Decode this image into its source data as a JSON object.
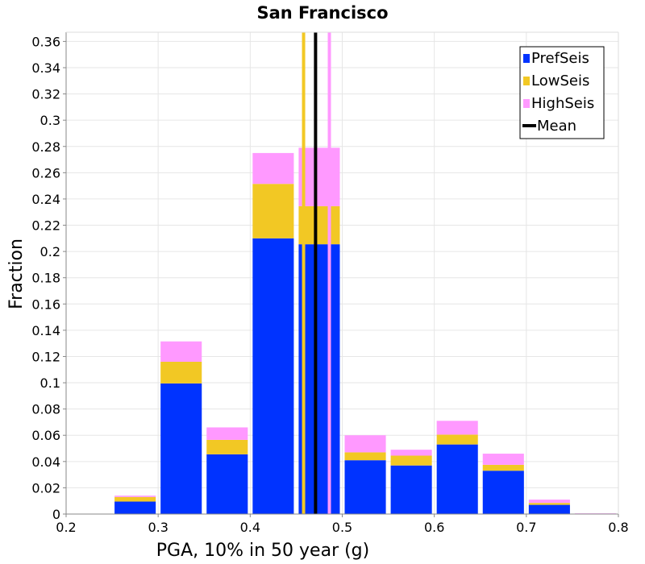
{
  "chart_data": {
    "type": "bar",
    "stacked": true,
    "title": "San Francisco",
    "xlabel": "PGA, 10% in 50 year (g)",
    "ylabel": "Fraction",
    "xlim": [
      0.2,
      0.8
    ],
    "ylim": [
      0,
      0.367
    ],
    "xticks": [
      "0.2",
      "0.3",
      "0.4",
      "0.5",
      "0.6",
      "0.7",
      "0.8"
    ],
    "yticks": [
      "0",
      "0.02",
      "0.04",
      "0.06",
      "0.08",
      "0.1",
      "0.12",
      "0.14",
      "0.16",
      "0.18",
      "0.2",
      "0.22",
      "0.24",
      "0.26",
      "0.28",
      "0.3",
      "0.32",
      "0.34",
      "0.36"
    ],
    "grid": true,
    "legend_position": "top-right",
    "bin_width": 0.05,
    "bins": [
      {
        "center": 0.275,
        "PrefSeis": 0.0095,
        "LowSeis": 0.0035,
        "HighSeis": 0.001
      },
      {
        "center": 0.325,
        "PrefSeis": 0.0995,
        "LowSeis": 0.0165,
        "HighSeis": 0.0155
      },
      {
        "center": 0.375,
        "PrefSeis": 0.0455,
        "LowSeis": 0.011,
        "HighSeis": 0.0095
      },
      {
        "center": 0.425,
        "PrefSeis": 0.21,
        "LowSeis": 0.0415,
        "HighSeis": 0.0235
      },
      {
        "center": 0.475,
        "PrefSeis": 0.2055,
        "LowSeis": 0.029,
        "HighSeis": 0.0445
      },
      {
        "center": 0.525,
        "PrefSeis": 0.041,
        "LowSeis": 0.006,
        "HighSeis": 0.013
      },
      {
        "center": 0.575,
        "PrefSeis": 0.037,
        "LowSeis": 0.0075,
        "HighSeis": 0.0045
      },
      {
        "center": 0.625,
        "PrefSeis": 0.053,
        "LowSeis": 0.0075,
        "HighSeis": 0.0105
      },
      {
        "center": 0.675,
        "PrefSeis": 0.033,
        "LowSeis": 0.0045,
        "HighSeis": 0.0085
      },
      {
        "center": 0.725,
        "PrefSeis": 0.007,
        "LowSeis": 0.0015,
        "HighSeis": 0.0025
      },
      {
        "center": 0.775,
        "PrefSeis": 0.0,
        "LowSeis": 0.0,
        "HighSeis": 0.0005
      }
    ],
    "series": [
      {
        "name": "PrefSeis",
        "color": "#0033ff"
      },
      {
        "name": "LowSeis",
        "color": "#f2c824"
      },
      {
        "name": "HighSeis",
        "color": "#ff99ff"
      }
    ],
    "lines": [
      {
        "name": "Mean",
        "x": 0.471,
        "color": "#000000"
      },
      {
        "series": "LowSeis",
        "x": 0.458,
        "color": "#f2c824"
      },
      {
        "series": "HighSeis",
        "x": 0.486,
        "color": "#ff99ff"
      }
    ],
    "legend": [
      {
        "label": "PrefSeis",
        "color": "#0033ff",
        "kind": "box"
      },
      {
        "label": "LowSeis",
        "color": "#f2c824",
        "kind": "box"
      },
      {
        "label": "HighSeis",
        "color": "#ff99ff",
        "kind": "box"
      },
      {
        "label": "Mean",
        "color": "#000000",
        "kind": "line"
      }
    ]
  }
}
